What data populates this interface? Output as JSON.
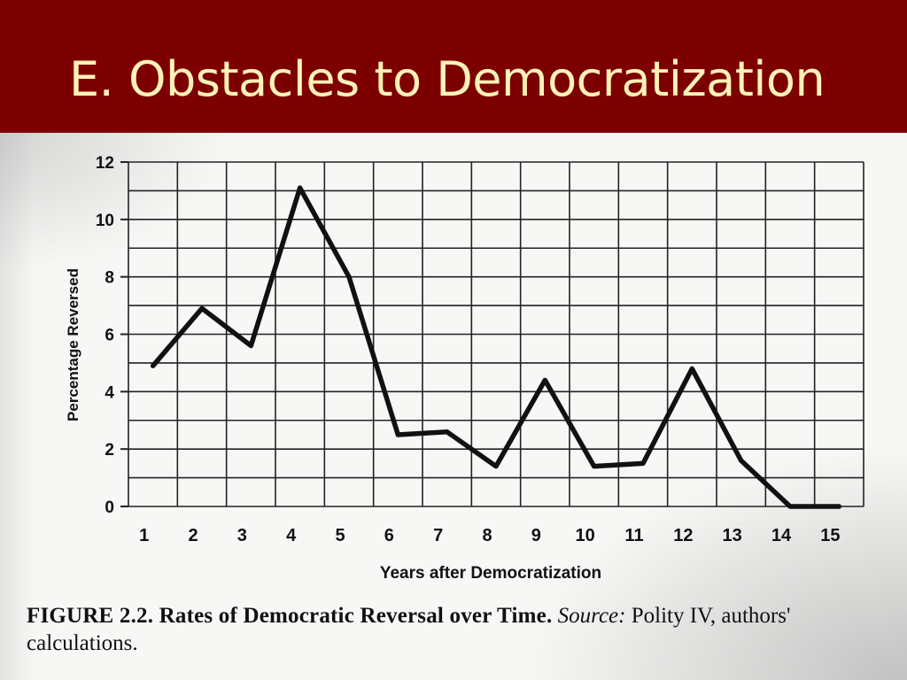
{
  "slide": {
    "title": "E. Obstacles to Democratization",
    "colors": {
      "title_bar": "#7d0000",
      "title_text": "#fff2b8",
      "line": "#111111",
      "grid": "#222222"
    }
  },
  "caption": {
    "figure": "FIGURE 2.2. Rates of Democratic Reversal over Time.",
    "source_label": "Source:",
    "source_text": "Polity IV, authors' calculations."
  },
  "chart_data": {
    "type": "line",
    "title": "",
    "xlabel": "Years after Democratization",
    "ylabel": "Percentage Reversed",
    "x": [
      1,
      2,
      3,
      4,
      5,
      6,
      7,
      8,
      9,
      10,
      11,
      12,
      13,
      14,
      15
    ],
    "y": [
      4.9,
      6.9,
      5.6,
      11.1,
      8.0,
      2.5,
      2.6,
      1.4,
      4.4,
      1.4,
      1.5,
      4.8,
      1.6,
      0.0,
      0.0
    ],
    "xlim": [
      0.5,
      15.5
    ],
    "ylim": [
      0,
      12
    ],
    "yticks": [
      0,
      2,
      4,
      6,
      8,
      10,
      12
    ],
    "xticks": [
      1,
      2,
      3,
      4,
      5,
      6,
      7,
      8,
      9,
      10,
      11,
      12,
      13,
      14,
      15
    ],
    "grid": true,
    "legend": "none"
  }
}
